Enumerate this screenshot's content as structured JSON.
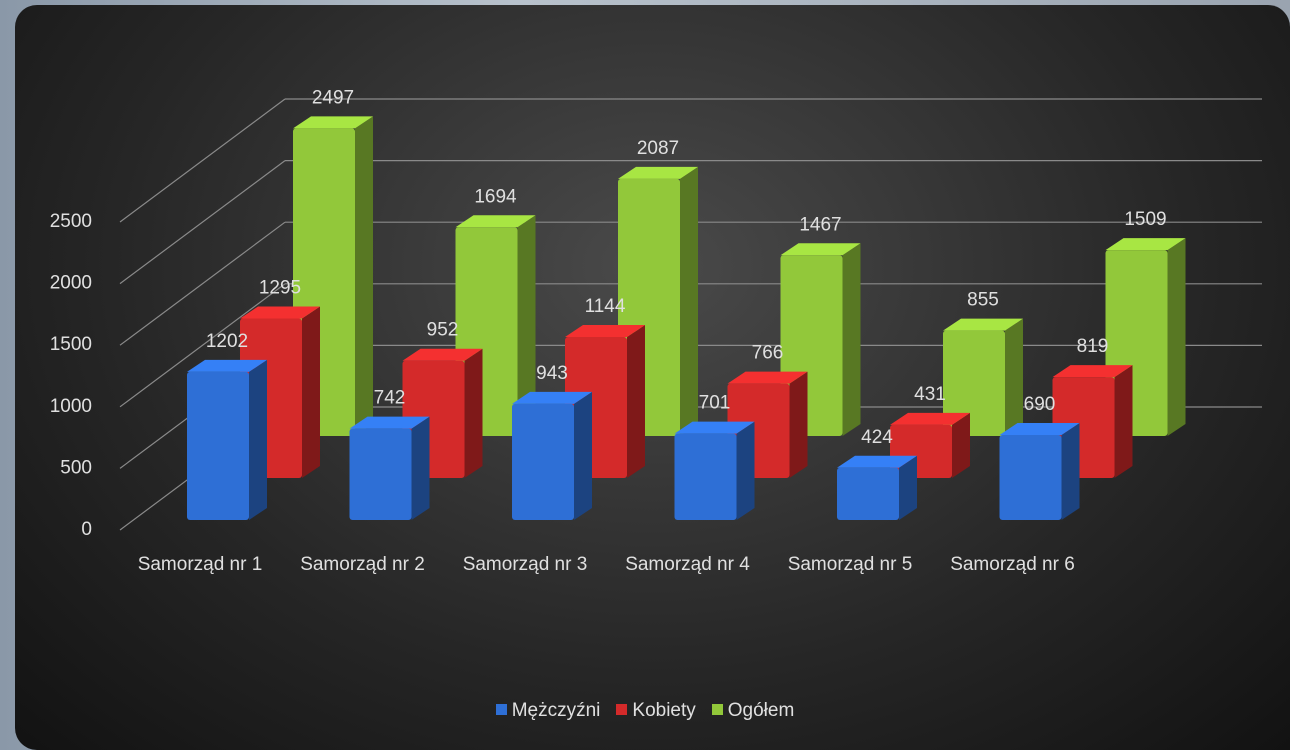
{
  "chart_data": {
    "type": "bar3d",
    "categories": [
      "Samorząd nr 1",
      "Samorząd nr 2",
      "Samorząd nr 3",
      "Samorząd nr 4",
      "Samorząd nr 5",
      "Samorząd nr 6"
    ],
    "series": [
      {
        "name": "Mężczyźni",
        "color": "#2e6fd6",
        "values": [
          1202,
          742,
          943,
          701,
          424,
          690
        ]
      },
      {
        "name": "Kobiety",
        "color": "#d42a2a",
        "values": [
          1295,
          952,
          1144,
          766,
          431,
          819
        ]
      },
      {
        "name": "Ogółem",
        "color": "#92c83a",
        "values": [
          2497,
          1694,
          2087,
          1467,
          855,
          1509
        ]
      }
    ],
    "ylim": [
      0,
      2500
    ],
    "yticks": [
      0,
      500,
      1000,
      1500,
      2000,
      2500
    ],
    "grid": true,
    "legend": "bottom"
  }
}
